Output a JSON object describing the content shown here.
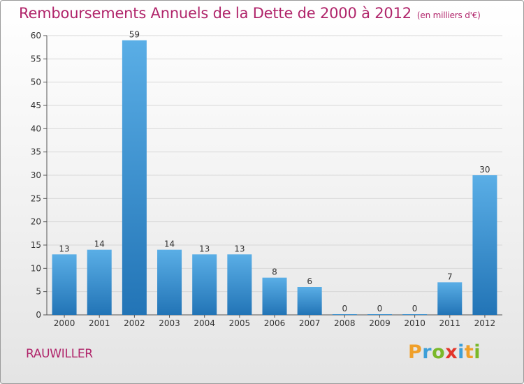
{
  "header": {
    "title": "Remboursements Annuels de la Dette de 2000 à 2012",
    "subtitle": "(en milliers d'€)"
  },
  "commune": "RAUWILLER",
  "logo": {
    "letters": [
      "P",
      "r",
      "o",
      "x",
      "i",
      "t",
      "i"
    ],
    "colors": [
      "#f0a02a",
      "#3d9fd8",
      "#7ab829",
      "#e3352a",
      "#3d9fd8",
      "#f0a02a",
      "#7ab829"
    ]
  },
  "colors": {
    "bar_light": "#5aaee6",
    "bar_dark": "#2274b6",
    "accent": "#b0246a",
    "grid": "#d8d8d8"
  },
  "chart_data": {
    "type": "bar",
    "title": "Remboursements Annuels de la Dette de 2000 à 2012",
    "categories": [
      "2000",
      "2001",
      "2002",
      "2003",
      "2004",
      "2005",
      "2006",
      "2007",
      "2008",
      "2009",
      "2010",
      "2011",
      "2012"
    ],
    "values": [
      13,
      14,
      59,
      14,
      13,
      13,
      8,
      6,
      0,
      0,
      0,
      7,
      30
    ],
    "ylim": [
      0,
      60
    ],
    "yticks": [
      0,
      5,
      10,
      15,
      20,
      25,
      30,
      35,
      40,
      45,
      50,
      55,
      60
    ],
    "grid": true
  }
}
